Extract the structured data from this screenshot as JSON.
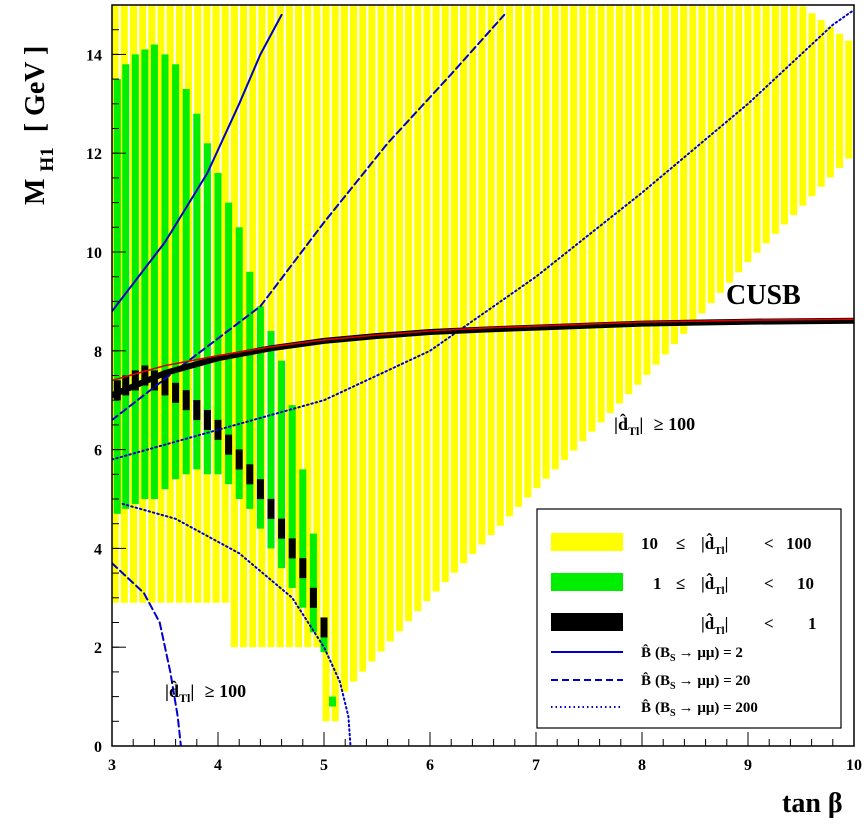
{
  "chart_data": {
    "type": "scatter",
    "xlabel": "tanβ",
    "ylabel": "M_H1 [ GeV ]",
    "xlim": [
      3,
      10
    ],
    "ylim": [
      0,
      15
    ],
    "x_ticks": [
      3,
      4,
      5,
      6,
      7,
      8,
      9,
      10
    ],
    "y_ticks": [
      0,
      2,
      4,
      6,
      8,
      10,
      12,
      14
    ],
    "region_bands": [
      {
        "name": "10 ≤ |d̂_Tl| < 100",
        "color": "#ffff00",
        "columns": [
          {
            "x_from": 3.0,
            "x_to": 4.1,
            "ranges": [
              [
                2.9,
                15
              ]
            ]
          },
          {
            "x_from": 4.1,
            "x_to": 5.0,
            "ranges": [
              [
                2.0,
                15
              ]
            ]
          },
          {
            "x_from": 5.0,
            "x_to": 5.15,
            "ranges": [
              [
                0.5,
                15
              ]
            ]
          },
          {
            "x_from": 5.15,
            "x_to": 10.0,
            "ranges": [
              [
                "lower_edge",
                "upper_edge"
              ]
            ]
          }
        ],
        "lower_edge": [
          [
            5.15,
            1.0
          ],
          [
            6.0,
            3.0
          ],
          [
            7.0,
            5.2
          ],
          [
            8.0,
            7.4
          ],
          [
            9.0,
            9.8
          ],
          [
            10.0,
            12.0
          ]
        ],
        "upper_edge": [
          [
            5.15,
            15
          ],
          [
            9.0,
            15
          ],
          [
            9.5,
            15
          ],
          [
            10.0,
            14.2
          ]
        ]
      },
      {
        "name": "1 ≤ |d̂_Tl| < 10",
        "color": "#00ee00",
        "columns": [
          {
            "x": 3.05,
            "ranges": [
              [
                4.7,
                13.5
              ]
            ]
          },
          {
            "x": 3.13,
            "ranges": [
              [
                4.8,
                13.8
              ]
            ]
          },
          {
            "x": 3.22,
            "ranges": [
              [
                4.9,
                14.0
              ]
            ]
          },
          {
            "x": 3.31,
            "ranges": [
              [
                5.0,
                14.1
              ]
            ]
          },
          {
            "x": 3.4,
            "ranges": [
              [
                5.0,
                14.2
              ]
            ]
          },
          {
            "x": 3.5,
            "ranges": [
              [
                5.2,
                14.0
              ]
            ]
          },
          {
            "x": 3.6,
            "ranges": [
              [
                5.4,
                13.8
              ]
            ]
          },
          {
            "x": 3.7,
            "ranges": [
              [
                5.5,
                13.3
              ]
            ]
          },
          {
            "x": 3.8,
            "ranges": [
              [
                5.6,
                12.8
              ]
            ]
          },
          {
            "x": 3.9,
            "ranges": [
              [
                5.5,
                12.2
              ]
            ]
          },
          {
            "x": 4.0,
            "ranges": [
              [
                5.5,
                11.6
              ]
            ]
          },
          {
            "x": 4.1,
            "ranges": [
              [
                5.3,
                11.0
              ]
            ]
          },
          {
            "x": 4.2,
            "ranges": [
              [
                5.0,
                10.5
              ]
            ]
          },
          {
            "x": 4.3,
            "ranges": [
              [
                4.8,
                9.6
              ]
            ]
          },
          {
            "x": 4.4,
            "ranges": [
              [
                4.4,
                8.9
              ]
            ]
          },
          {
            "x": 4.5,
            "ranges": [
              [
                4.0,
                8.4
              ]
            ]
          },
          {
            "x": 4.6,
            "ranges": [
              [
                3.6,
                7.8
              ]
            ]
          },
          {
            "x": 4.7,
            "ranges": [
              [
                3.2,
                6.9
              ]
            ]
          },
          {
            "x": 4.8,
            "ranges": [
              [
                2.8,
                5.6
              ]
            ]
          },
          {
            "x": 4.9,
            "ranges": [
              [
                2.3,
                4.3
              ]
            ]
          },
          {
            "x": 5.0,
            "ranges": [
              [
                1.9,
                2.6
              ]
            ]
          },
          {
            "x": 5.08,
            "ranges": [
              [
                0.8,
                1.0
              ]
            ]
          }
        ]
      },
      {
        "name": "|d̂_Tl| < 1",
        "color": "#000000",
        "points": [
          [
            3.05,
            7.2
          ],
          [
            3.13,
            7.3
          ],
          [
            3.22,
            7.4
          ],
          [
            3.31,
            7.5
          ],
          [
            3.4,
            7.4
          ],
          [
            3.5,
            7.3
          ],
          [
            3.6,
            7.15
          ],
          [
            3.7,
            7.0
          ],
          [
            3.8,
            6.8
          ],
          [
            3.9,
            6.6
          ],
          [
            4.0,
            6.4
          ],
          [
            4.1,
            6.1
          ],
          [
            4.2,
            5.8
          ],
          [
            4.3,
            5.5
          ],
          [
            4.4,
            5.2
          ],
          [
            4.5,
            4.8
          ],
          [
            4.6,
            4.4
          ],
          [
            4.7,
            4.0
          ],
          [
            4.8,
            3.6
          ],
          [
            4.9,
            3.0
          ],
          [
            5.0,
            2.4
          ]
        ]
      }
    ],
    "series": [
      {
        "name": "B̂ (B_S → μμ) = 2",
        "style": "solid",
        "color": "#0000cc",
        "points": [
          [
            3.0,
            8.8
          ],
          [
            3.5,
            10.2
          ],
          [
            3.9,
            11.6
          ],
          [
            4.2,
            13.0
          ],
          [
            4.4,
            14.0
          ],
          [
            4.6,
            14.8
          ]
        ]
      },
      {
        "name": "B̂ (B_S → μμ) = 20",
        "style": "dashed",
        "color": "#0000cc",
        "points": [
          [
            3.0,
            6.6
          ],
          [
            3.6,
            7.6
          ],
          [
            4.4,
            8.9
          ],
          [
            5.0,
            10.6
          ],
          [
            5.6,
            12.2
          ],
          [
            6.2,
            13.6
          ],
          [
            6.7,
            14.8
          ]
        ]
      },
      {
        "name": "B̂ (B_S → μμ) = 200",
        "style": "dotted",
        "color": "#0000cc",
        "points": [
          [
            3.0,
            5.8
          ],
          [
            4.0,
            6.4
          ],
          [
            5.0,
            7.0
          ],
          [
            6.0,
            8.0
          ],
          [
            7.0,
            9.5
          ],
          [
            8.0,
            11.2
          ],
          [
            9.0,
            13.0
          ],
          [
            9.8,
            14.6
          ],
          [
            10.0,
            14.9
          ]
        ]
      },
      {
        "name": "B̂ (B_S → μμ) = 20",
        "style": "dashed",
        "color": "#0000cc",
        "points": [
          [
            3.0,
            3.7
          ],
          [
            3.3,
            3.1
          ],
          [
            3.45,
            2.5
          ],
          [
            3.55,
            1.5
          ],
          [
            3.62,
            0.6
          ],
          [
            3.65,
            0.0
          ]
        ]
      },
      {
        "name": "B̂ (B_S → μμ) = 200",
        "style": "dotted",
        "color": "#0000cc",
        "points": [
          [
            3.1,
            4.9
          ],
          [
            3.6,
            4.6
          ],
          [
            4.2,
            3.9
          ],
          [
            4.7,
            3.0
          ],
          [
            5.0,
            2.0
          ],
          [
            5.15,
            1.3
          ],
          [
            5.23,
            0.6
          ],
          [
            5.25,
            0.0
          ]
        ]
      },
      {
        "name": "CUSB",
        "style": "solid-thick",
        "color": "#000000",
        "points": [
          [
            3.0,
            7.1
          ],
          [
            3.5,
            7.55
          ],
          [
            4.0,
            7.85
          ],
          [
            4.5,
            8.05
          ],
          [
            5.0,
            8.2
          ],
          [
            5.5,
            8.3
          ],
          [
            6.0,
            8.38
          ],
          [
            6.5,
            8.43
          ],
          [
            7.0,
            8.47
          ],
          [
            7.5,
            8.51
          ],
          [
            8.0,
            8.55
          ],
          [
            8.5,
            8.57
          ],
          [
            9.0,
            8.59
          ],
          [
            9.5,
            8.6
          ],
          [
            10.0,
            8.61
          ]
        ]
      },
      {
        "name": "CUSB-red",
        "style": "solid-thin",
        "color": "#dd0000",
        "points": [
          [
            3.0,
            7.4
          ],
          [
            3.5,
            7.7
          ],
          [
            4.0,
            7.9
          ],
          [
            4.5,
            8.08
          ],
          [
            5.0,
            8.22
          ],
          [
            5.5,
            8.32
          ],
          [
            6.0,
            8.4
          ],
          [
            6.5,
            8.46
          ],
          [
            7.0,
            8.5
          ],
          [
            7.5,
            8.54
          ],
          [
            8.0,
            8.58
          ],
          [
            8.5,
            8.6
          ],
          [
            9.0,
            8.62
          ],
          [
            9.5,
            8.63
          ],
          [
            10.0,
            8.64
          ]
        ]
      }
    ],
    "annotations": [
      {
        "text": "CUSB",
        "x": 8.7,
        "y": 8.9
      },
      {
        "text": "|d̂_Tl| ≥ 100",
        "x": 7.9,
        "y": 6.4
      },
      {
        "text": "|d̂_Tl| ≥ 100",
        "x": 3.5,
        "y": 1.3
      }
    ],
    "legend": {
      "position": "bottom-right",
      "entries": [
        {
          "label_lhs": "10",
          "label_op": "≤",
          "label_var": "|d̂",
          "label_sub": "Tl",
          "label_rel": "| <",
          "label_val": "100",
          "color": "#ffff00",
          "kind": "band"
        },
        {
          "label_lhs": "1",
          "label_op": "≤",
          "label_var": "|d̂",
          "label_sub": "Tl",
          "label_rel": "| <",
          "label_val": "10",
          "color": "#00ee00",
          "kind": "band"
        },
        {
          "label_lhs": "",
          "label_op": "",
          "label_var": "|d̂",
          "label_sub": "Tl",
          "label_rel": "| <",
          "label_val": "1",
          "color": "#000000",
          "kind": "band"
        },
        {
          "label": "B̂ (B_S → μμ) = 2",
          "color": "#0000cc",
          "kind": "solid"
        },
        {
          "label": "B̂ (B_S → μμ) = 20",
          "color": "#0000cc",
          "kind": "dashed"
        },
        {
          "label": "B̂ (B_S → μμ) = 200",
          "color": "#0000cc",
          "kind": "dotted"
        }
      ]
    }
  },
  "texts": {
    "cusb": "CUSB",
    "region_upper": "|d̂_Tl| ≥ 100",
    "region_lower": "|d̂_Tl| ≥ 100",
    "x_title_main": "tan",
    "x_title_greek": "β",
    "y_title_main": "M",
    "y_title_sub": "H1",
    "y_title_unit": "[ GeV ]",
    "dhat": "d̂",
    "tl": "Tl",
    "geq100": "≥ 100",
    "legend_rows": [
      {
        "a": "10",
        "b": "≤",
        "c": "|",
        "d": "d̂",
        "e": "Tl",
        "f": "|",
        "g": "<",
        "h": "100"
      },
      {
        "a": "1",
        "b": "≤",
        "c": "|",
        "d": "d̂",
        "e": "Tl",
        "f": "|",
        "g": "<",
        "h": "10"
      },
      {
        "a": "",
        "b": "",
        "c": "|",
        "d": "d̂",
        "e": "Tl",
        "f": "|",
        "g": "<",
        "h": "1"
      }
    ],
    "legend_lines": [
      {
        "bhat": "B̂",
        "inner": "(B",
        "s": "S",
        "arrow": "→ μμ) = 2"
      },
      {
        "bhat": "B̂",
        "inner": "(B",
        "s": "S",
        "arrow": "→ μμ) = 20"
      },
      {
        "bhat": "B̂",
        "inner": "(B",
        "s": "S",
        "arrow": "→ μμ) = 200"
      }
    ]
  }
}
